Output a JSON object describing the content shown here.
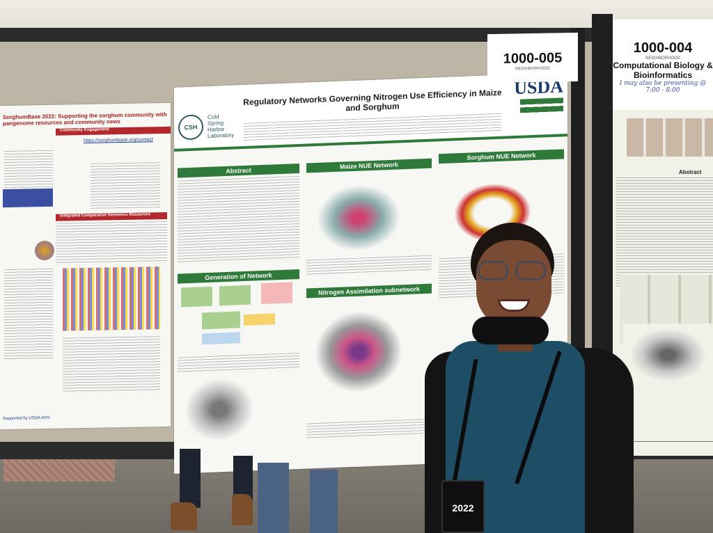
{
  "posters": {
    "left": {
      "title": "SorghumBase 2022: Supporting the sorghum community with pangenome resources and community news",
      "section_engagement": "Community Engagement",
      "section_genomics": "Integrated Comparative Genomics Resources",
      "contact_link": "https://sorghumbase.org/contact",
      "support_text": "Supported by USDA ARS"
    },
    "center": {
      "title": "Regulatory Networks Governing Nitrogen Use Efficiency in Maize and Sorghum",
      "institution_line1": "Cold",
      "institution_line2": "Spring",
      "institution_line3": "Harbor",
      "institution_line4": "Laboratory",
      "logo_text": "CSH",
      "agency_logo": "USDA",
      "sections": {
        "abstract": "Abstract",
        "maize_network": "Maize NUE Network",
        "sorghum_network": "Sorghum NUE Network",
        "generation": "Generation of Network",
        "nitrogen_subnetwork": "Nitrogen Assimilation subnetwork"
      }
    },
    "right": {
      "abstract_label": "Abstract"
    }
  },
  "board_labels": {
    "center_number": "1000-005",
    "center_category": "NEIGHBORHOOD",
    "right_number": "1000-004",
    "right_category": "NEIGHBORHOOD",
    "right_topic": "Computational Biology & Bioinformatics",
    "right_note": "I may also be presenting @ 7:00 - 8:00"
  },
  "badge": {
    "year": "2022"
  }
}
